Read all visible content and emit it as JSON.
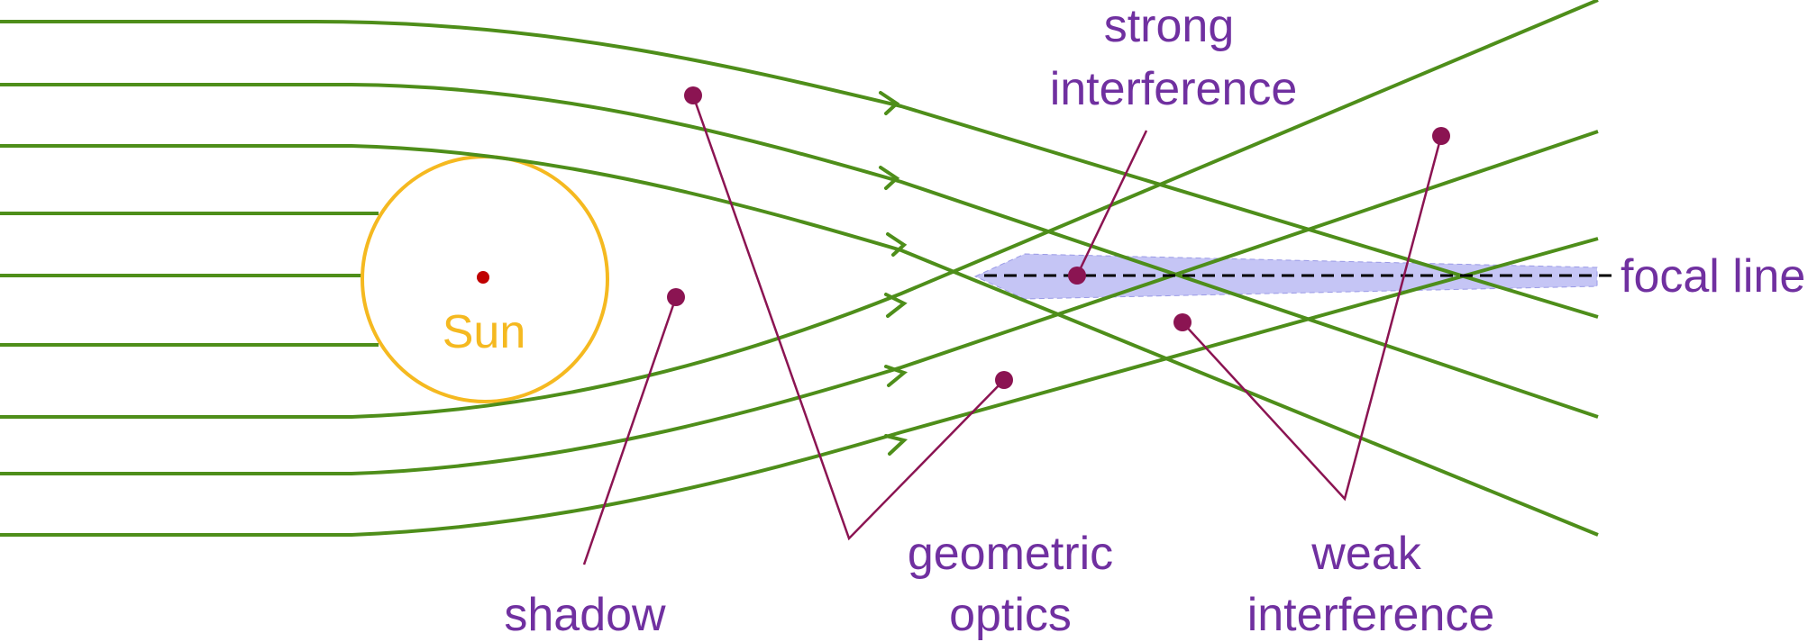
{
  "labels": {
    "sun": "Sun",
    "strong_line1": "strong",
    "strong_line2": "interference",
    "focal": "focal line",
    "geometric_line1": "geometric",
    "geometric_line2": "optics",
    "weak_line1": "weak",
    "weak_line2": "interference",
    "shadow": "shadow"
  },
  "colors": {
    "ray": "#4E8E1A",
    "sun": "#F5B920",
    "sun_center": "#C00000",
    "marker": "#8B1452",
    "pointer_line": "#8B1452",
    "text": "#7030A0",
    "focal_band": "#B7B7F2",
    "focal_dash": "#000000"
  }
}
